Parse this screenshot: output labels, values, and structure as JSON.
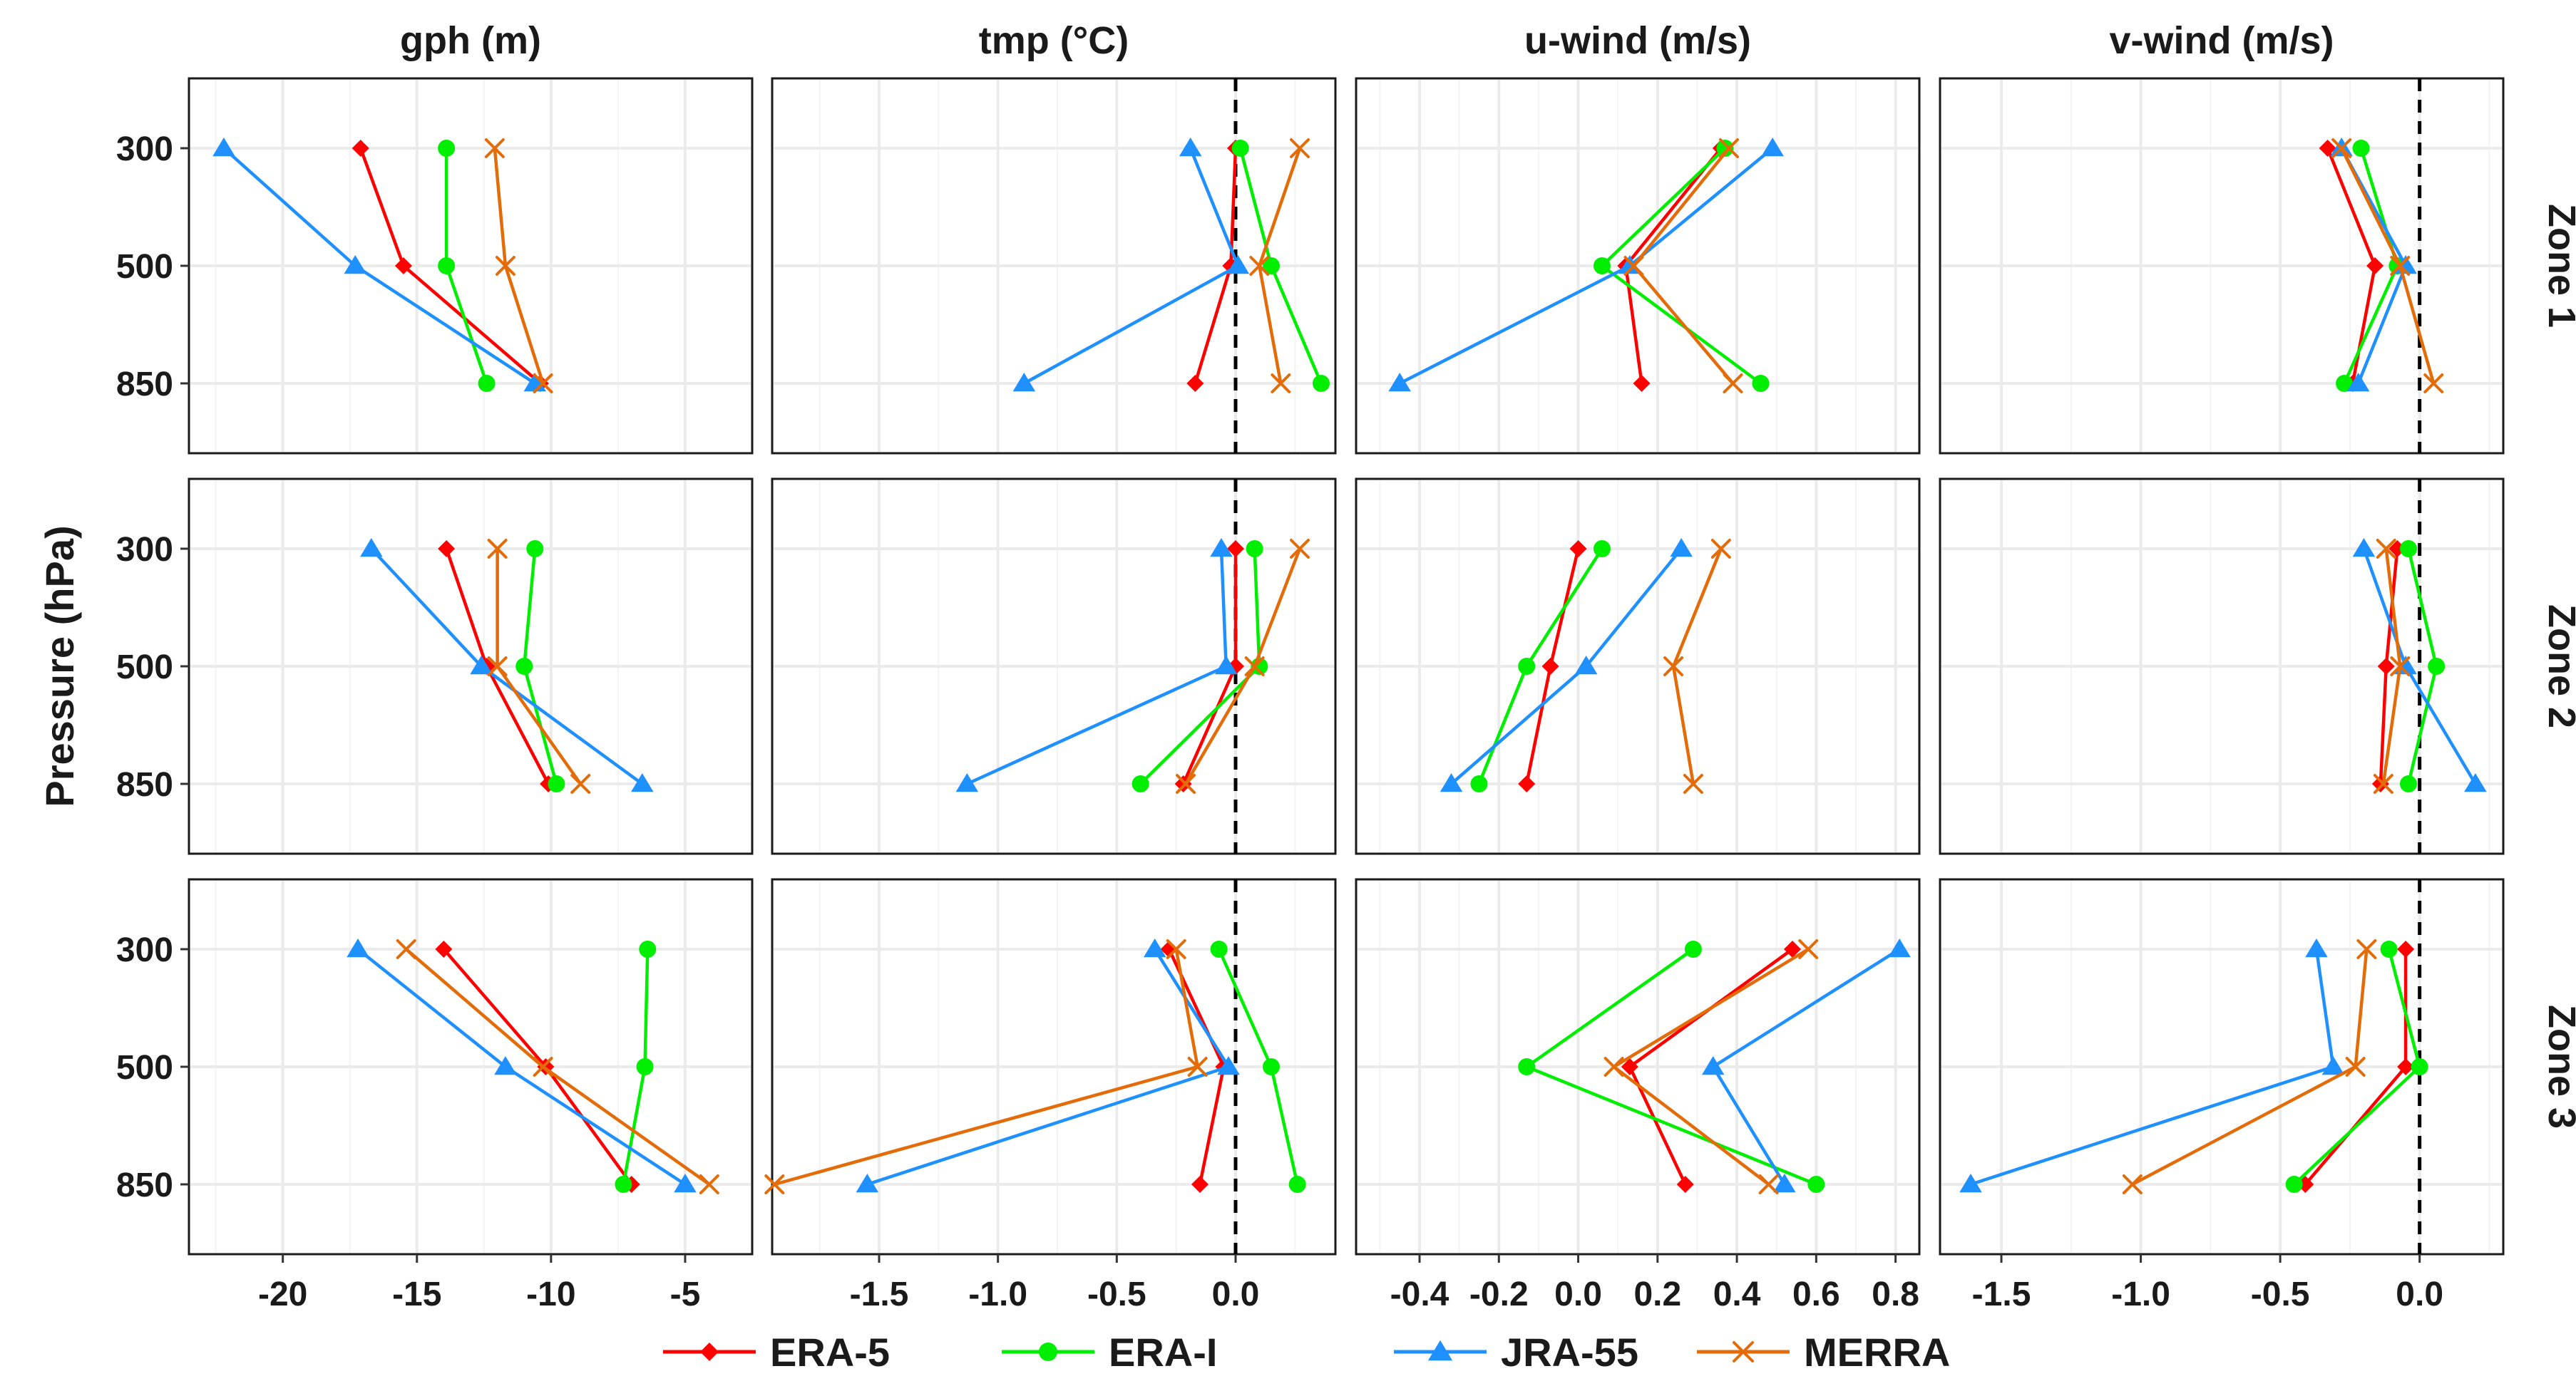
{
  "chart_data": {
    "type": "line",
    "title": "",
    "ylabel": "Pressure (hPa)",
    "pressure_levels": [
      300,
      500,
      850
    ],
    "column_titles": [
      "gph (m)",
      "tmp (°C)",
      "u-wind (m/s)",
      "v-wind (m/s)"
    ],
    "row_titles": [
      "Zone 1",
      "Zone 2",
      "Zone 3"
    ],
    "legend": {
      "position": "bottom",
      "entries": [
        {
          "name": "ERA-5",
          "color": "#ff0000",
          "marker": "diamond"
        },
        {
          "name": "ERA-I",
          "color": "#00ee00",
          "marker": "circle"
        },
        {
          "name": "JRA-55",
          "color": "#1e90ff",
          "marker": "triangle"
        },
        {
          "name": "MERRA",
          "color": "#e36c09",
          "marker": "cross"
        }
      ]
    },
    "columns": [
      {
        "title": "gph (m)",
        "xlim": [
          -23.5,
          -2.5
        ],
        "ticks": [
          -20,
          -15,
          -10,
          -5
        ],
        "tick_labels": [
          "-20",
          "-15",
          "-10",
          "-5"
        ],
        "zero_line": false
      },
      {
        "title": "tmp (°C)",
        "xlim": [
          -1.95,
          0.42
        ],
        "ticks": [
          -1.5,
          -1.0,
          -0.5,
          0.0
        ],
        "tick_labels": [
          "-1.5",
          "-1.0",
          "-0.5",
          "0.0"
        ],
        "zero_line": true
      },
      {
        "title": "u-wind (m/s)",
        "xlim": [
          -0.56,
          0.86
        ],
        "ticks": [
          -0.4,
          -0.2,
          0.0,
          0.2,
          0.4,
          0.6,
          0.8
        ],
        "tick_labels": [
          "-0.4",
          "-0.2",
          "0.0",
          "0.2",
          "0.4",
          "0.6",
          "0.8"
        ],
        "zero_line": false
      },
      {
        "title": "v-wind (m/s)",
        "xlim": [
          -1.72,
          0.3
        ],
        "ticks": [
          -1.5,
          -1.0,
          -0.5,
          0.0
        ],
        "tick_labels": [
          "-1.5",
          "-1.0",
          "-0.5",
          "0.0"
        ],
        "zero_line": true
      }
    ],
    "panels": [
      [
        {
          "series": {
            "ERA-5": [
              -17.1,
              -15.5,
              -10.4
            ],
            "ERA-I": [
              -13.9,
              -13.9,
              -12.4
            ],
            "JRA-55": [
              -22.2,
              -17.3,
              -10.6
            ],
            "MERRA": [
              -12.1,
              -11.7,
              -10.3
            ]
          }
        },
        {
          "series": {
            "ERA-5": [
              0.0,
              -0.02,
              -0.17
            ],
            "ERA-I": [
              0.02,
              0.15,
              0.36
            ],
            "JRA-55": [
              -0.19,
              0.01,
              -0.89
            ],
            "MERRA": [
              0.27,
              0.1,
              0.19
            ]
          }
        },
        {
          "series": {
            "ERA-5": [
              0.36,
              0.12,
              0.16
            ],
            "ERA-I": [
              0.37,
              0.06,
              0.46
            ],
            "JRA-55": [
              0.49,
              0.13,
              -0.45
            ],
            "MERRA": [
              0.38,
              0.14,
              0.39
            ]
          }
        },
        {
          "series": {
            "ERA-5": [
              -0.33,
              -0.16,
              -0.24
            ],
            "ERA-I": [
              -0.21,
              -0.08,
              -0.27
            ],
            "JRA-55": [
              -0.28,
              -0.05,
              -0.22
            ],
            "MERRA": [
              -0.28,
              -0.07,
              0.05
            ]
          }
        }
      ],
      [
        {
          "series": {
            "ERA-5": [
              -13.9,
              -12.4,
              -10.1
            ],
            "ERA-I": [
              -10.6,
              -11.0,
              -9.8
            ],
            "JRA-55": [
              -16.7,
              -12.6,
              -6.6
            ],
            "MERRA": [
              -12.0,
              -12.0,
              -8.9
            ]
          }
        },
        {
          "series": {
            "ERA-5": [
              0.0,
              0.0,
              -0.22
            ],
            "ERA-I": [
              0.08,
              0.1,
              -0.4
            ],
            "JRA-55": [
              -0.06,
              -0.04,
              -1.13
            ],
            "MERRA": [
              0.27,
              0.08,
              -0.21
            ]
          }
        },
        {
          "series": {
            "ERA-5": [
              0.0,
              -0.07,
              -0.13
            ],
            "ERA-I": [
              0.06,
              -0.13,
              -0.25
            ],
            "JRA-55": [
              0.26,
              0.02,
              -0.32
            ],
            "MERRA": [
              0.36,
              0.24,
              0.29
            ]
          }
        },
        {
          "series": {
            "ERA-5": [
              -0.08,
              -0.12,
              -0.14
            ],
            "ERA-I": [
              -0.04,
              0.06,
              -0.04
            ],
            "JRA-55": [
              -0.2,
              -0.05,
              0.2
            ],
            "MERRA": [
              -0.12,
              -0.07,
              -0.13
            ]
          }
        }
      ],
      [
        {
          "series": {
            "ERA-5": [
              -14.0,
              -10.2,
              -7.0
            ],
            "ERA-I": [
              -6.4,
              -6.5,
              -7.3
            ],
            "JRA-55": [
              -17.2,
              -11.7,
              -5.0
            ],
            "MERRA": [
              -15.4,
              -10.3,
              -4.1
            ]
          }
        },
        {
          "series": {
            "ERA-5": [
              -0.28,
              -0.05,
              -0.15
            ],
            "ERA-I": [
              -0.07,
              0.15,
              0.26
            ],
            "JRA-55": [
              -0.34,
              -0.03,
              -1.55
            ],
            "MERRA": [
              -0.25,
              -0.16,
              -1.94
            ]
          }
        },
        {
          "series": {
            "ERA-5": [
              0.54,
              0.13,
              0.27
            ],
            "ERA-I": [
              0.29,
              -0.13,
              0.6
            ],
            "JRA-55": [
              0.81,
              0.34,
              0.52
            ],
            "MERRA": [
              0.58,
              0.09,
              0.48
            ]
          }
        },
        {
          "series": {
            "ERA-5": [
              -0.05,
              -0.05,
              -0.41
            ],
            "ERA-I": [
              -0.11,
              0.0,
              -0.45
            ],
            "JRA-55": [
              -0.37,
              -0.31,
              -1.61
            ],
            "MERRA": [
              -0.19,
              -0.23,
              -1.03
            ]
          }
        }
      ]
    ]
  }
}
